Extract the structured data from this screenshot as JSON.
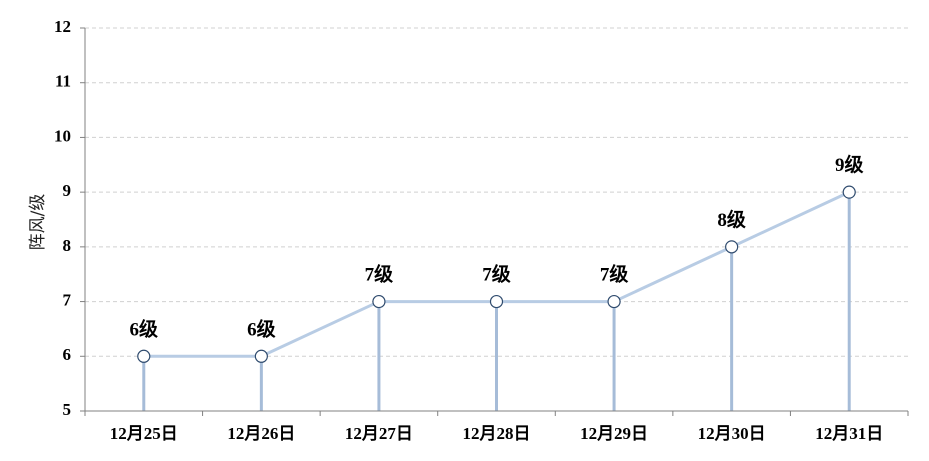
{
  "chart_data": {
    "type": "line",
    "title": "",
    "xlabel": "",
    "ylabel": "阵风/级",
    "categories": [
      "12月25日",
      "12月26日",
      "12月27日",
      "12月28日",
      "12月29日",
      "12月30日",
      "12月31日"
    ],
    "series": [
      {
        "values": [
          6,
          6,
          7,
          7,
          7,
          8,
          9
        ]
      }
    ],
    "data_labels": [
      "6级",
      "6级",
      "7级",
      "7级",
      "7级",
      "8级",
      "9级"
    ],
    "ylim": [
      5,
      12
    ],
    "yticks": [
      "5",
      "6",
      "7",
      "8",
      "9",
      "10",
      "11",
      "12"
    ],
    "grid": "horizontal-dashed",
    "drop_lines": true,
    "colors": {
      "line": "#b8cce4",
      "drop_line": "#a6bcd8",
      "marker_edge": "#2f4b6e",
      "marker_fill": "#ffffff",
      "grid": "#d0d0d0",
      "axis": "#808080"
    }
  }
}
